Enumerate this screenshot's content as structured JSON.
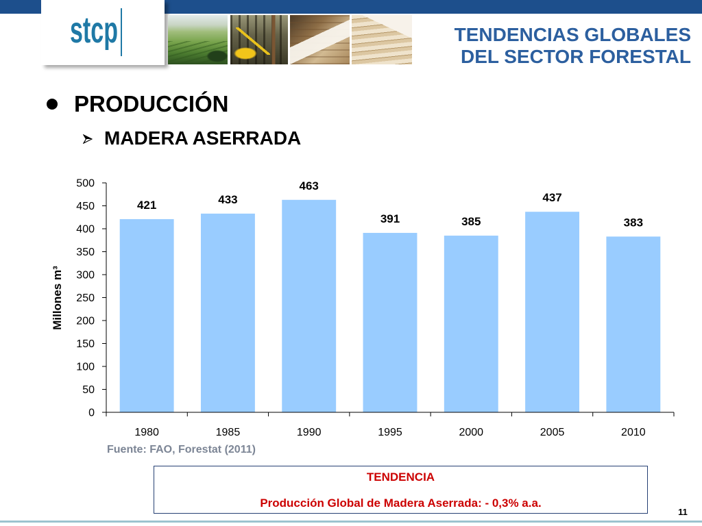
{
  "header": {
    "band_color": "#1d4f8c",
    "logo_text": "stcp",
    "logo_color": "#1f79a6",
    "title_line1": "TENDENCIAS GLOBALES",
    "title_line2": "DEL SECTOR FORESTAL",
    "title_color": "#2c5f9f"
  },
  "body": {
    "bullet_icon": "bullet-dot-icon",
    "bullet_text": "PRODUCCIÓN",
    "subbullet_icon": "arrow-bullet-icon",
    "subbullet_text": "MADERA ASERRADA"
  },
  "chart_data": {
    "type": "bar",
    "categories": [
      "1980",
      "1985",
      "1990",
      "1995",
      "2000",
      "2005",
      "2010"
    ],
    "values": [
      421,
      433,
      463,
      391,
      385,
      437,
      383
    ],
    "ylabel": "Millones m³",
    "ylim": [
      0,
      500
    ],
    "yticks": [
      0,
      50,
      100,
      150,
      200,
      250,
      300,
      350,
      400,
      450,
      500
    ],
    "data_labels": true,
    "grid": false,
    "bar_color": "#99ccff"
  },
  "source": {
    "text": "Fuente: FAO, Forestat (2011)",
    "color": "#7c8595"
  },
  "trend_box": {
    "heading": "TENDENCIA",
    "text": "Producción Global de Madera Aserrada: - 0,3% a.a.",
    "text_color": "#cc0000",
    "border_color": "#243f73"
  },
  "page_number": "11"
}
